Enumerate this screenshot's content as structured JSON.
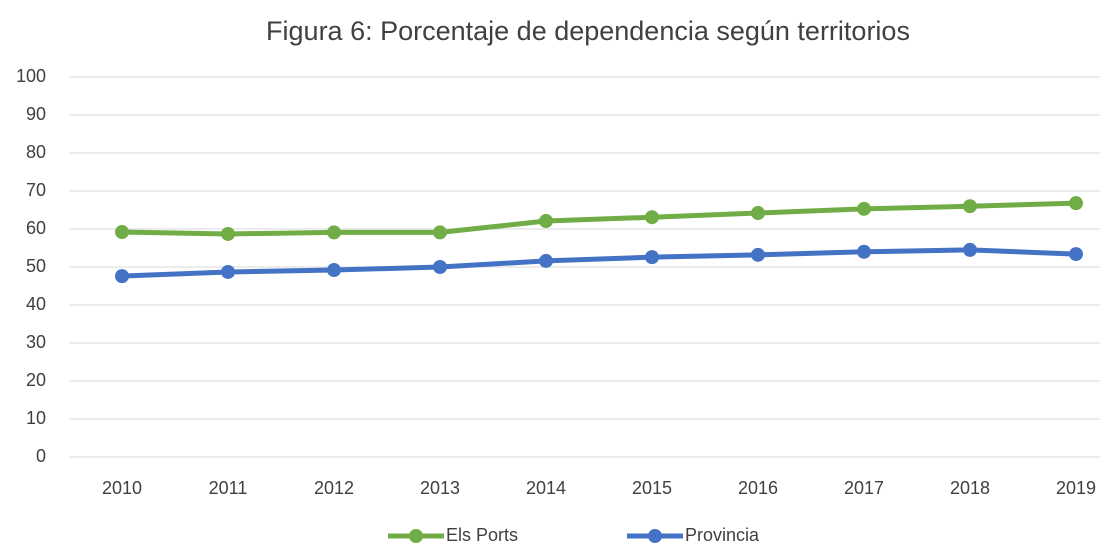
{
  "chart_data": {
    "type": "line",
    "title": "Figura 6: Porcentaje de dependencia según territorios",
    "categories": [
      "2010",
      "2011",
      "2012",
      "2013",
      "2014",
      "2015",
      "2016",
      "2017",
      "2018",
      "2019"
    ],
    "series": [
      {
        "name": "Els Ports",
        "color": "#70ad47",
        "values": [
          59.2,
          58.7,
          59.1,
          59.1,
          62.1,
          63.1,
          64.2,
          65.3,
          66.0,
          66.8
        ]
      },
      {
        "name": "Provincia",
        "color": "#4472c4",
        "values": [
          47.6,
          48.7,
          49.2,
          50.0,
          51.6,
          52.6,
          53.2,
          54.0,
          54.5,
          53.4
        ]
      }
    ],
    "ylim": [
      0,
      100
    ],
    "yticks": [
      0,
      10,
      20,
      30,
      40,
      50,
      60,
      70,
      80,
      90,
      100
    ],
    "grid": true,
    "legend": "bottom"
  }
}
